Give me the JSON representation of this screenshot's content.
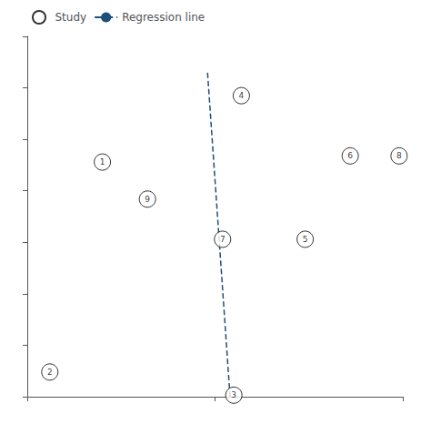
{
  "chart_data": {
    "type": "scatter",
    "series": [
      {
        "name": "Study",
        "type": "scatter",
        "marker": "open_circle",
        "color": "#000000",
        "x": [
          0.2,
          0.06,
          0.55,
          0.57,
          0.74,
          0.86,
          0.52,
          0.99,
          0.32
        ],
        "values": [
          0.76,
          0.08,
          0.005,
          0.975,
          0.51,
          0.78,
          0.51,
          0.78,
          0.64
        ],
        "labels": [
          "1",
          "2",
          "3",
          "4",
          "5",
          "6",
          "7",
          "8",
          "9"
        ]
      },
      {
        "name": "Regression line",
        "type": "line",
        "line_style": "dashed",
        "color": "#1f4e79",
        "x": [
          0.54,
          0.48
        ],
        "values": [
          0.0,
          1.05
        ]
      }
    ],
    "xlim": [
      0,
      1
    ],
    "xticks": [
      0.0,
      0.5,
      1.0
    ],
    "ylim": [
      0,
      1.167
    ],
    "yticks": [
      0.0,
      0.167,
      0.333,
      0.5,
      0.667,
      0.833,
      1.0,
      1.167
    ],
    "tick_labels": false,
    "grid": false,
    "legend": "upper left"
  }
}
